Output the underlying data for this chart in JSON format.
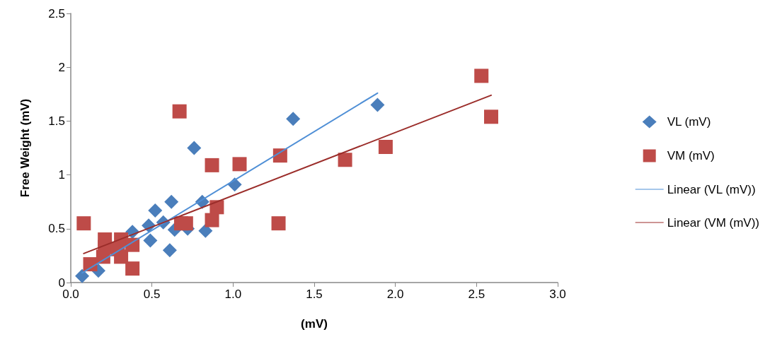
{
  "chart_data": {
    "type": "scatter",
    "xlabel": "(mV)",
    "ylabel": "Free Weight (mV)",
    "xlim": [
      0,
      3
    ],
    "ylim": [
      0,
      2.5
    ],
    "xticks": [
      {
        "value": 0,
        "label": "0.0"
      },
      {
        "value": 0.5,
        "label": "0.5"
      },
      {
        "value": 1,
        "label": "1.0"
      },
      {
        "value": 1.5,
        "label": "1.5"
      },
      {
        "value": 2,
        "label": "2.0"
      },
      {
        "value": 2.5,
        "label": "2.5"
      },
      {
        "value": 3,
        "label": "3.0"
      }
    ],
    "yticks": [
      0,
      0.5,
      1,
      1.5,
      2,
      2.5
    ],
    "grid": false,
    "legend": "right",
    "series": [
      {
        "name": "VL (mV)",
        "marker": "diamond",
        "color": "#4a7ebb",
        "x": [
          0.07,
          0.17,
          0.38,
          0.49,
          0.48,
          0.52,
          0.57,
          0.62,
          0.61,
          0.64,
          0.72,
          0.76,
          0.81,
          0.83,
          1.01,
          1.37,
          1.89
        ],
        "values": [
          0.06,
          0.11,
          0.47,
          0.39,
          0.53,
          0.67,
          0.56,
          0.75,
          0.3,
          0.49,
          0.5,
          1.25,
          0.75,
          0.48,
          0.91,
          1.52,
          1.65
        ]
      },
      {
        "name": "VM (mV)",
        "marker": "square",
        "color": "#be4b48",
        "x": [
          0.08,
          0.67,
          0.87,
          1.04,
          1.29,
          0.9,
          0.87,
          0.68,
          0.71,
          1.28,
          0.12,
          0.2,
          0.21,
          0.21,
          0.31,
          0.31,
          0.29,
          0.38,
          0.38,
          1.69,
          1.94,
          2.53,
          2.59
        ],
        "values": [
          0.55,
          1.59,
          1.09,
          1.1,
          1.18,
          0.7,
          0.58,
          0.55,
          0.55,
          0.55,
          0.17,
          0.24,
          0.4,
          0.33,
          0.4,
          0.24,
          0.31,
          0.35,
          0.13,
          1.14,
          1.26,
          1.92,
          1.54
        ]
      },
      {
        "name": "Linear (VL (mV))",
        "type": "line",
        "marker": "none",
        "line_style": "solid",
        "color": "#4f8fd6",
        "x": [
          0.07,
          1.89
        ],
        "values": [
          0.09,
          1.76
        ]
      },
      {
        "name": "Linear (VM (mV))",
        "type": "line",
        "marker": "none",
        "line_style": "solid",
        "color": "#9b2d2a",
        "x": [
          0.08,
          2.59
        ],
        "values": [
          0.27,
          1.74
        ]
      }
    ]
  }
}
